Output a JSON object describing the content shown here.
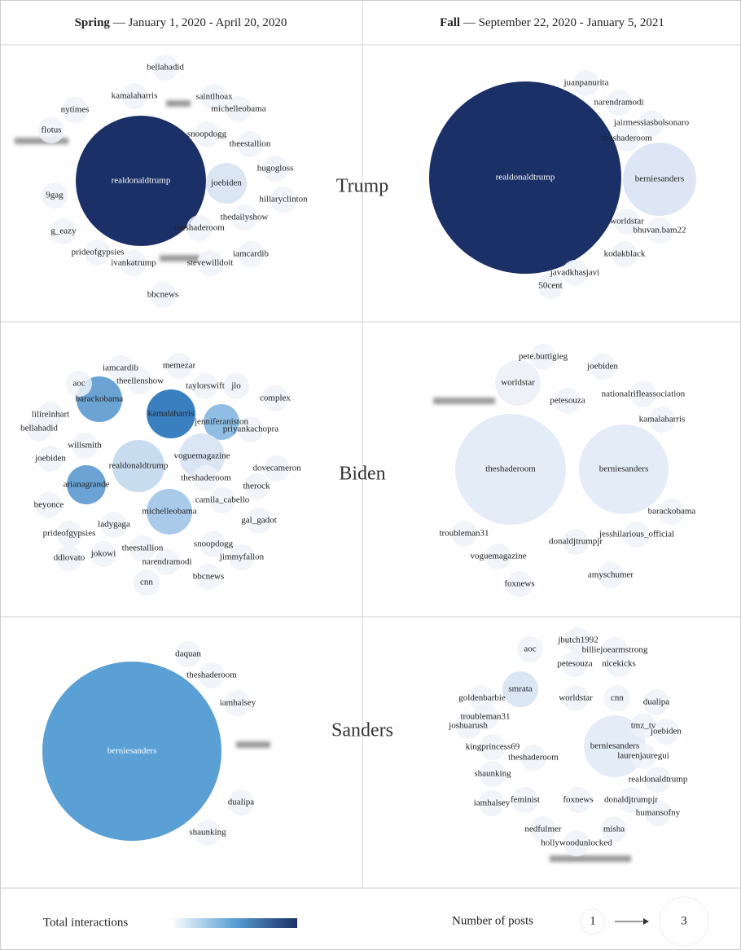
{
  "header": {
    "columns": [
      {
        "name": "Spring",
        "dates": "— January 1, 2020 - April 20, 2020"
      },
      {
        "name": "Fall",
        "dates": "— September 22, 2020 - January 5, 2021"
      }
    ]
  },
  "rows": [
    {
      "name": "Trump",
      "columns": [
        [
          "realdonaldtrump",
          "joebiden",
          "bellahadid",
          "kamalaharris",
          "saintlhoax",
          "nytimes",
          "michelleobama",
          "flotus",
          "snoopdogg",
          "theestallion",
          "hugogloss",
          "hillaryclinton",
          "9gag",
          "thedailyshow",
          "theshaderoom",
          "g_eazy",
          "iamcardib",
          "prideofgypsies",
          "ivankatrump",
          "stevewilldoit",
          "bbcnews"
        ],
        [
          "realdonaldtrump",
          "berniesanders",
          "juanpanurita",
          "narendramodi",
          "jairmessiasbolsonaro",
          "theshaderoom",
          "worldstar",
          "bhuvan.bam22",
          "kodakblack",
          "javadkhasjavi",
          "50cent"
        ]
      ]
    },
    {
      "name": "Biden",
      "columns": [
        [
          "kamalaharris",
          "barackobama",
          "jenniferaniston",
          "arianagrande",
          "realdonaldtrump",
          "michelleobama",
          "voguemagazine",
          "iamcardib",
          "memezar",
          "aoc",
          "theellenshow",
          "taylorswift",
          "jlo",
          "complex",
          "lilireinhart",
          "bellahadid",
          "priyankachopra",
          "willsmith",
          "dovecameron",
          "joebiden",
          "theshaderoom",
          "therock",
          "beyonce",
          "camila_cabello",
          "gal_gadot",
          "ladygaga",
          "prideofgypsies",
          "snoopdogg",
          "theestallion",
          "jimmyfallon",
          "ddlovato",
          "jokowi",
          "narendramodi",
          "bbcnews",
          "cnn"
        ],
        [
          "theshaderoom",
          "berniesanders",
          "worldstar",
          "pete.buttigieg",
          "joebiden",
          "nationalrifleassociation",
          "petesouza",
          "kamalaharris",
          "barackobama",
          "jesshilarious_official",
          "donaldjtrumpjr",
          "troubleman31",
          "voguemagazine",
          "amyschumer",
          "foxnews"
        ]
      ]
    },
    {
      "name": "Sanders",
      "columns": [
        [
          "berniesanders",
          "daquan",
          "theshaderoom",
          "iamhalsey",
          "dualipa",
          "shaunking"
        ],
        [
          "berniesanders",
          "smrata",
          "jbutch1992",
          "billiejoearmstrong",
          "aoc",
          "petesouza",
          "nicekicks",
          "goldenbarbie",
          "worldstar",
          "cnn",
          "dualipa",
          "troubleman31",
          "joshuarush",
          "tmz_tv",
          "joebiden",
          "laurenjauregui",
          "kingprincess69",
          "theshaderoom",
          "shaunking",
          "realdonaldtrump",
          "iamhalsey",
          "feminist",
          "foxnews",
          "donaldjtrumpjr",
          "humansofny",
          "nedfulmer",
          "misha",
          "hollywoodunlocked"
        ]
      ]
    }
  ],
  "legend": {
    "color_label": "Total interactions",
    "size_label": "Number of posts",
    "size_min": 1,
    "size_max": 3
  }
}
